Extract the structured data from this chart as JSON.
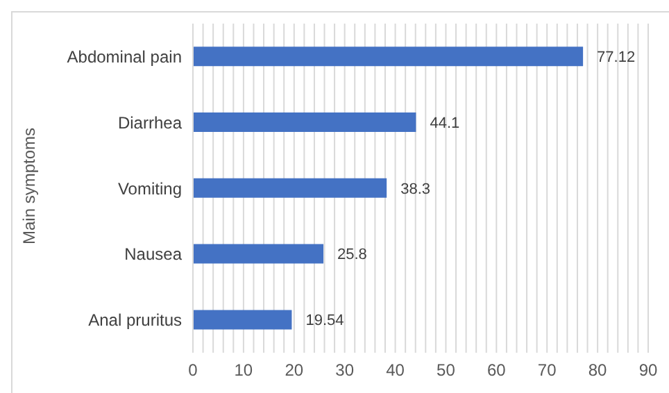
{
  "chart_data": {
    "type": "bar",
    "orientation": "horizontal",
    "ylabel": "Main symptoms",
    "categories": [
      "Abdominal pain",
      "Diarrhea",
      "Vomiting",
      "Nausea",
      "Anal pruritus"
    ],
    "values": [
      77.12,
      44.1,
      38.3,
      25.8,
      19.54
    ],
    "color": "#4472c4",
    "data_labels": true,
    "xlim": [
      0,
      90
    ],
    "xticks": [
      0,
      {
        "value": 2,
        "label": null
      },
      {
        "value": 4,
        "label": null
      },
      {
        "value": 6,
        "label": null
      },
      {
        "value": 8,
        "label": null
      },
      10,
      {
        "value": 12,
        "label": null
      },
      {
        "value": 14,
        "label": null
      },
      {
        "value": 16,
        "label": null
      },
      {
        "value": 18,
        "label": null
      },
      20,
      {
        "value": 22,
        "label": null
      },
      {
        "value": 24,
        "label": null
      },
      {
        "value": 26,
        "label": null
      },
      {
        "value": 28,
        "label": null
      },
      30,
      {
        "value": 32,
        "label": null
      },
      {
        "value": 34,
        "label": null
      },
      {
        "value": 36,
        "label": null
      },
      {
        "value": 38,
        "label": null
      },
      40,
      {
        "value": 42,
        "label": null
      },
      {
        "value": 44,
        "label": null
      },
      {
        "value": 46,
        "label": null
      },
      {
        "value": 48,
        "label": null
      },
      50,
      {
        "value": 52,
        "label": null
      },
      {
        "value": 54,
        "label": null
      },
      {
        "value": 56,
        "label": null
      },
      {
        "value": 58,
        "label": null
      },
      60,
      {
        "value": 62,
        "label": null
      },
      {
        "value": 64,
        "label": null
      },
      {
        "value": 66,
        "label": null
      },
      {
        "value": 68,
        "label": null
      },
      70,
      {
        "value": 72,
        "label": null
      },
      {
        "value": 74,
        "label": null
      },
      {
        "value": 76,
        "label": null
      },
      {
        "value": 78,
        "label": null
      },
      80,
      {
        "value": 82,
        "label": null
      },
      {
        "value": 84,
        "label": null
      },
      {
        "value": 86,
        "label": null
      },
      {
        "value": 88,
        "label": null
      },
      90
    ],
    "grid": "x"
  }
}
